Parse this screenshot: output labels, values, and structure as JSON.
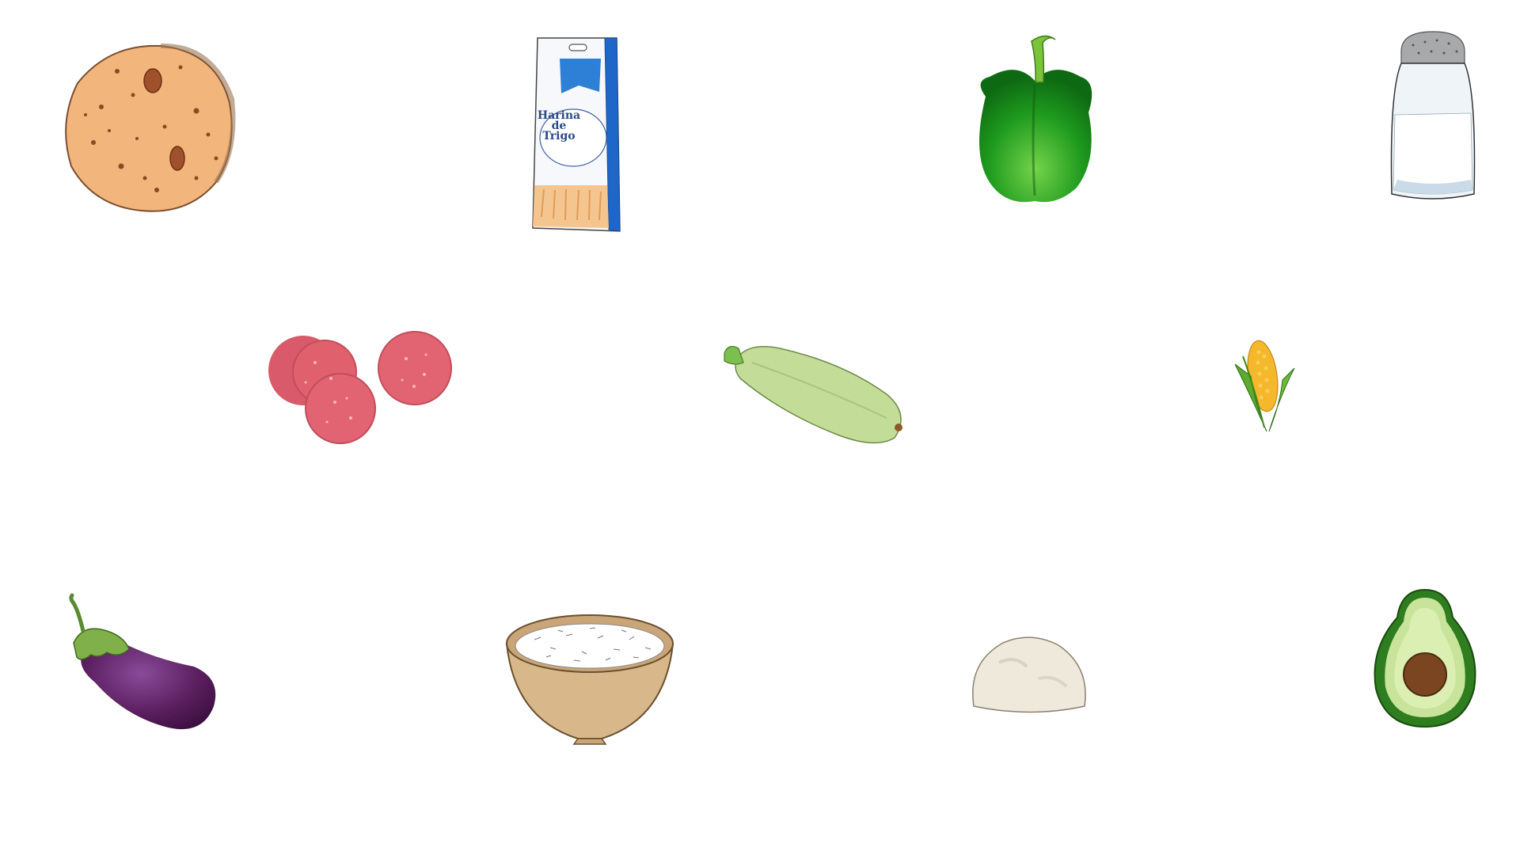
{
  "board": {
    "items": [
      {
        "name": "arepa"
      },
      {
        "name": "flour-bag",
        "label_lines": [
          "Harina",
          "de",
          "Trigo"
        ]
      },
      {
        "name": "green-pepper"
      },
      {
        "name": "salt-shaker"
      },
      {
        "name": "salami-slices"
      },
      {
        "name": "zucchini"
      },
      {
        "name": "corn-cob"
      },
      {
        "name": "eggplant"
      },
      {
        "name": "rice-bowl"
      },
      {
        "name": "dough-ball"
      },
      {
        "name": "avocado-half"
      }
    ]
  },
  "colors": {
    "background": "#ffffff",
    "arepa": "#f2b57c",
    "flour_bag_blue": "#1f66c9",
    "pepper": "#1e9a1e",
    "salami": "#e0606e",
    "zucchini": "#c3dd98",
    "corn": "#f5b82d",
    "eggplant": "#5b1f5f",
    "rice_bowl": "#d8b88a",
    "dough": "#efe9dc",
    "avocado_skin": "#2e7d1e",
    "avocado_pit": "#7a4520"
  }
}
